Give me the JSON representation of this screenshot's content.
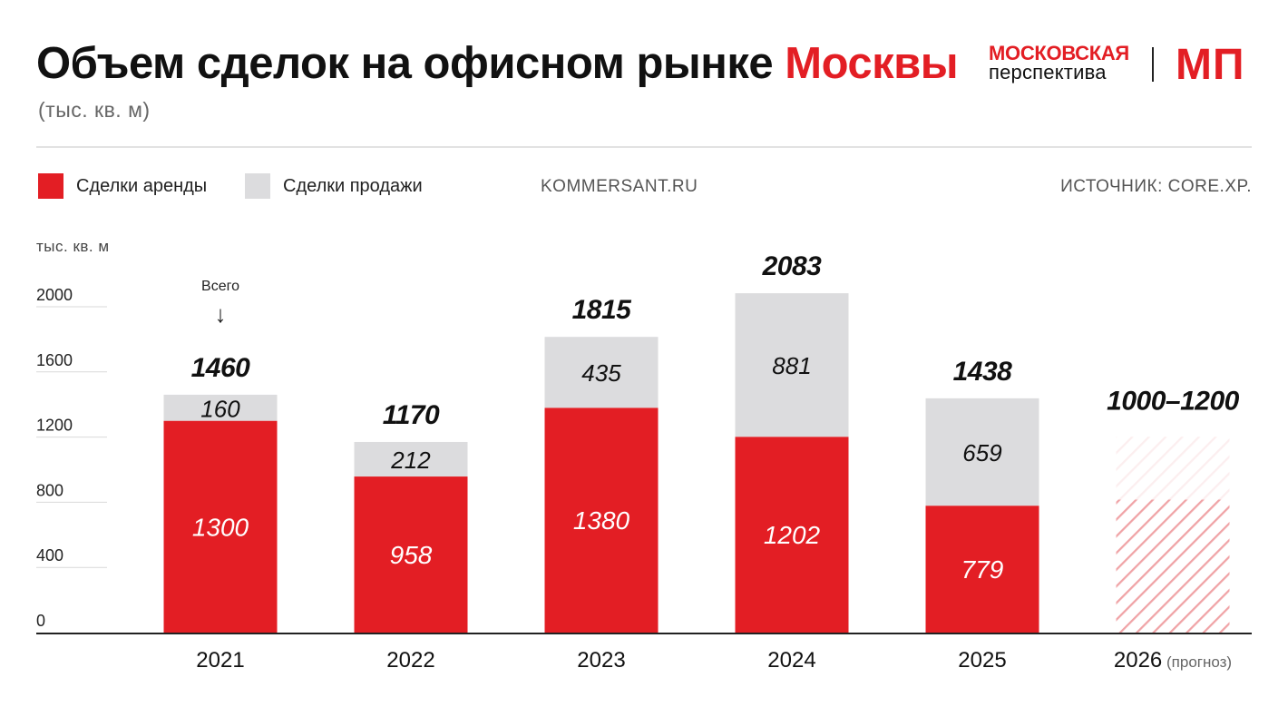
{
  "header": {
    "title_main": "Объем сделок на офисном рынке",
    "title_highlight": "Москвы",
    "subtitle": "(тыс. кв. м)",
    "brand_line1": "МОСКОВСКАЯ",
    "brand_line2": "перспектива",
    "brand_mark": "МП"
  },
  "legend": {
    "rent_label": "Сделки аренды",
    "sale_label": "Сделки продажи"
  },
  "sources": {
    "left": "KOMMERSANT.RU",
    "right": "ИСТОЧНИК: CORE.XP."
  },
  "colors": {
    "rent": "#e31e24",
    "sale": "#dcdcde",
    "forecast_hatch": "#f0a3a6",
    "text": "#111111",
    "axis": "#222222",
    "grid": "#d9d9d9"
  },
  "chart_data": {
    "type": "bar",
    "stacked": true,
    "ylabel": "тыс. кв. м",
    "ylim": [
      0,
      2000
    ],
    "yticks": [
      0,
      400,
      800,
      1200,
      1600,
      2000
    ],
    "grid": true,
    "categories": [
      "2021",
      "2022",
      "2023",
      "2024",
      "2025",
      "2026"
    ],
    "category_notes": [
      "",
      "",
      "",
      "",
      "",
      "(прогноз)"
    ],
    "series": [
      {
        "name": "Сделки аренды",
        "values": [
          1300,
          958,
          1380,
          1202,
          779,
          null
        ]
      },
      {
        "name": "Сделки продажи",
        "values": [
          160,
          212,
          435,
          881,
          659,
          null
        ]
      }
    ],
    "totals": [
      "1460",
      "1170",
      "1815",
      "2083",
      "1438",
      "1000–1200"
    ],
    "forecast": {
      "category": "2026",
      "range": [
        1000,
        1200
      ],
      "label": "1000–1200"
    },
    "annotation": {
      "category": "2021",
      "text": "Всего",
      "arrow": "↓"
    }
  }
}
